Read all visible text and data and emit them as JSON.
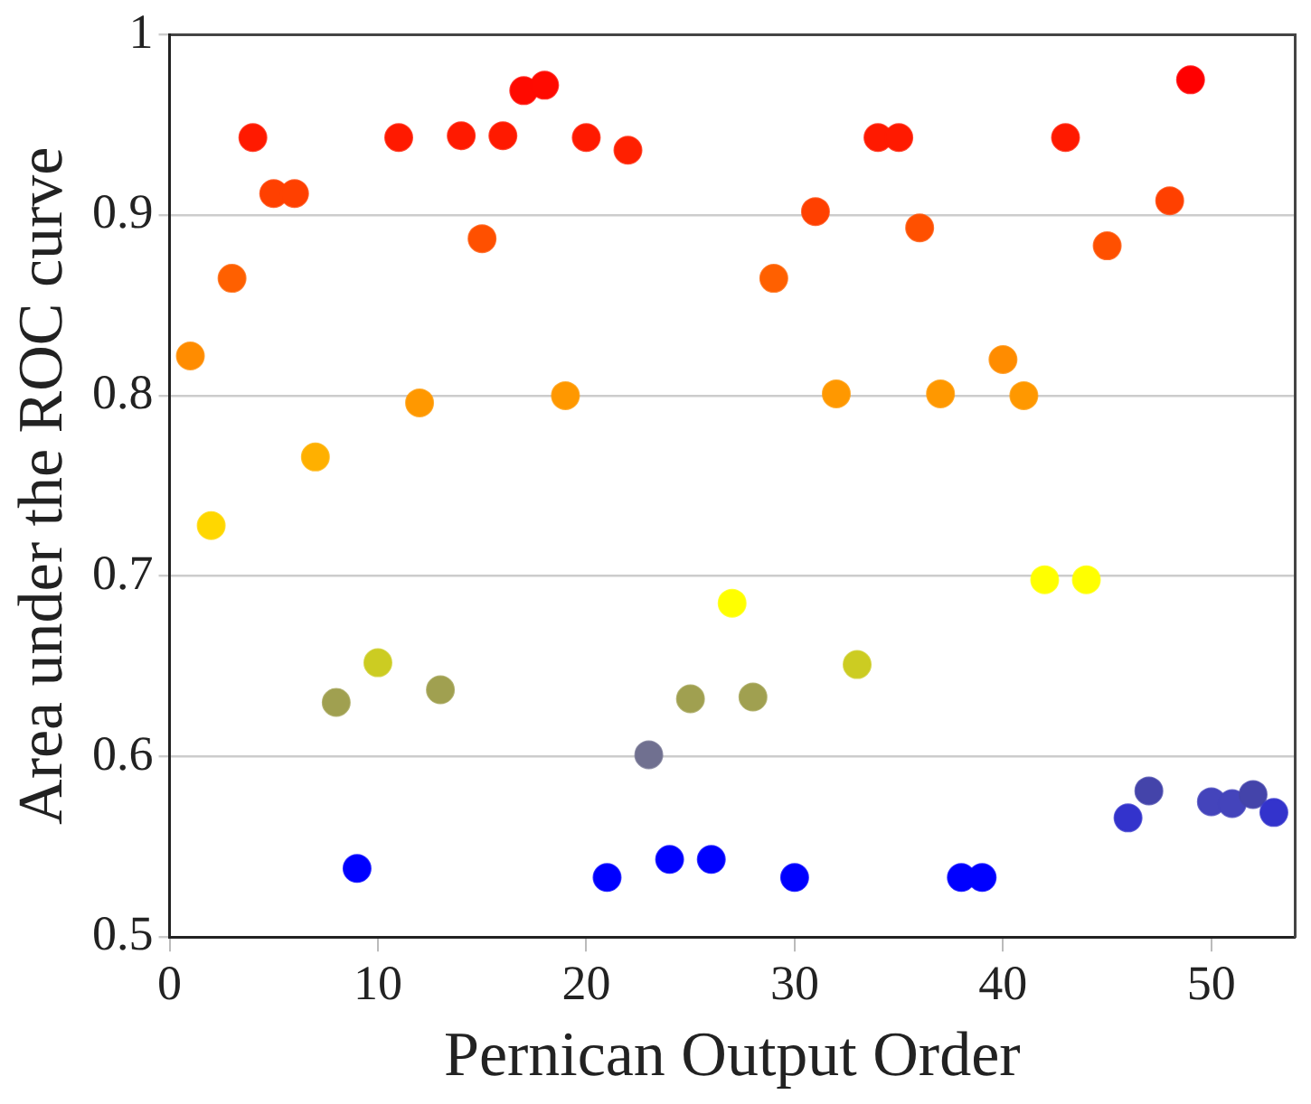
{
  "chart_data": {
    "type": "scatter",
    "xlabel": "Pernican Output Order",
    "ylabel": "Area under the ROC curve",
    "x": [
      1,
      2,
      3,
      4,
      5,
      6,
      7,
      8,
      9,
      10,
      11,
      12,
      13,
      14,
      15,
      16,
      17,
      18,
      19,
      20,
      21,
      22,
      23,
      24,
      25,
      26,
      27,
      28,
      29,
      30,
      31,
      32,
      33,
      34,
      35,
      36,
      37,
      38,
      39,
      40,
      41,
      42,
      43,
      44,
      45,
      46,
      47,
      48,
      49,
      50,
      51,
      52,
      53
    ],
    "values": [
      0.822,
      0.728,
      0.865,
      0.943,
      0.912,
      0.912,
      0.766,
      0.63,
      0.538,
      0.652,
      0.943,
      0.796,
      0.637,
      0.944,
      0.887,
      0.944,
      0.969,
      0.972,
      0.8,
      0.943,
      0.533,
      0.936,
      0.601,
      0.543,
      0.632,
      0.543,
      0.685,
      0.633,
      0.865,
      0.533,
      0.902,
      0.801,
      0.651,
      0.943,
      0.943,
      0.893,
      0.801,
      0.533,
      0.533,
      0.82,
      0.8,
      0.698,
      0.943,
      0.698,
      0.883,
      0.566,
      0.581,
      0.908,
      0.975,
      0.575,
      0.574,
      0.579,
      0.569
    ],
    "colors": [
      "#ff8c00",
      "#ffd700",
      "#ff6000",
      "#ff1a00",
      "#ff4000",
      "#ff4000",
      "#ffb000",
      "#a0a050",
      "#0000ff",
      "#cccc22",
      "#ff1a00",
      "#ff9800",
      "#a0a050",
      "#ff1a00",
      "#ff5000",
      "#ff1a00",
      "#ff0a00",
      "#ff0a00",
      "#ff9800",
      "#ff1a00",
      "#0000ff",
      "#ff2000",
      "#707090",
      "#0000ff",
      "#a0a050",
      "#0000ff",
      "#ffff00",
      "#a0a050",
      "#ff6000",
      "#0000ff",
      "#ff4000",
      "#ff9800",
      "#cccc22",
      "#ff1a00",
      "#ff1a00",
      "#ff5000",
      "#ff9800",
      "#0000ff",
      "#0000ff",
      "#ff8c00",
      "#ff9800",
      "#ffff00",
      "#ff1a00",
      "#ffff00",
      "#ff5000",
      "#3333cc",
      "#4444aa",
      "#ff4000",
      "#ff0000",
      "#4444bb",
      "#4444bb",
      "#4444aa",
      "#3333cc"
    ],
    "xlim": [
      0,
      54
    ],
    "xticks": [
      0,
      10,
      20,
      30,
      40,
      50
    ],
    "ylim": [
      0.5,
      1
    ],
    "yticks": [
      0.5,
      0.6,
      0.7,
      0.8,
      0.9,
      1
    ],
    "grid": "y",
    "marker": "circle",
    "legend": false
  }
}
